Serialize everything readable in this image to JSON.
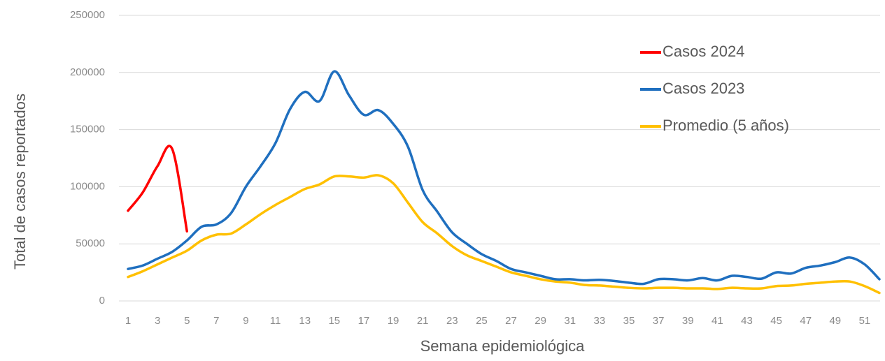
{
  "chart_data": {
    "type": "line",
    "xlabel": "Semana epidemiológica",
    "ylabel": "Total de casos reportados",
    "x": [
      1,
      2,
      3,
      4,
      5,
      6,
      7,
      8,
      9,
      10,
      11,
      12,
      13,
      14,
      15,
      16,
      17,
      18,
      19,
      20,
      21,
      22,
      23,
      24,
      25,
      26,
      27,
      28,
      29,
      30,
      31,
      32,
      33,
      34,
      35,
      36,
      37,
      38,
      39,
      40,
      41,
      42,
      43,
      44,
      45,
      46,
      47,
      48,
      49,
      50,
      51,
      52
    ],
    "series": [
      {
        "name": "Casos 2024",
        "color": "#ff0000",
        "values": [
          79000,
          95000,
          118000,
          133000,
          61000,
          null,
          null,
          null,
          null,
          null,
          null,
          null,
          null,
          null,
          null,
          null,
          null,
          null,
          null,
          null,
          null,
          null,
          null,
          null,
          null,
          null,
          null,
          null,
          null,
          null,
          null,
          null,
          null,
          null,
          null,
          null,
          null,
          null,
          null,
          null,
          null,
          null,
          null,
          null,
          null,
          null,
          null,
          null,
          null,
          null,
          null,
          null
        ]
      },
      {
        "name": "Casos 2023",
        "color": "#1f6fbf",
        "values": [
          28000,
          31000,
          37000,
          43000,
          53000,
          65000,
          67000,
          77000,
          100000,
          118000,
          138000,
          168000,
          183000,
          175000,
          201000,
          180000,
          163000,
          167000,
          155000,
          135000,
          97000,
          78000,
          60000,
          50000,
          41000,
          35000,
          28000,
          25000,
          22000,
          19000,
          19000,
          18000,
          18500,
          17500,
          16000,
          15000,
          19000,
          19000,
          18000,
          20000,
          18000,
          22000,
          21000,
          19500,
          25000,
          24000,
          29000,
          31000,
          34000,
          38000,
          32000,
          19000
        ]
      },
      {
        "name": "Promedio (5 años)",
        "color": "#ffc000",
        "values": [
          21000,
          26000,
          32000,
          38000,
          44000,
          53000,
          58000,
          59000,
          67000,
          76000,
          84000,
          91000,
          98000,
          102000,
          109000,
          109000,
          108000,
          110000,
          103000,
          86000,
          69000,
          59000,
          48000,
          40000,
          35000,
          30000,
          25000,
          22000,
          19000,
          17000,
          16000,
          14000,
          13500,
          12500,
          11500,
          11000,
          11500,
          11500,
          11000,
          11000,
          10500,
          11500,
          11000,
          11000,
          13000,
          13500,
          15000,
          16000,
          17000,
          17000,
          13000,
          7000
        ]
      }
    ],
    "xlim": [
      1,
      52
    ],
    "xticks": [
      1,
      3,
      5,
      7,
      9,
      11,
      13,
      15,
      17,
      19,
      21,
      23,
      25,
      27,
      29,
      31,
      33,
      35,
      37,
      39,
      41,
      43,
      45,
      47,
      49,
      51
    ],
    "ylim": [
      0,
      250000
    ],
    "yticks": [
      0,
      50000,
      100000,
      150000,
      200000,
      250000
    ],
    "grid": true,
    "legend": "top-right"
  }
}
